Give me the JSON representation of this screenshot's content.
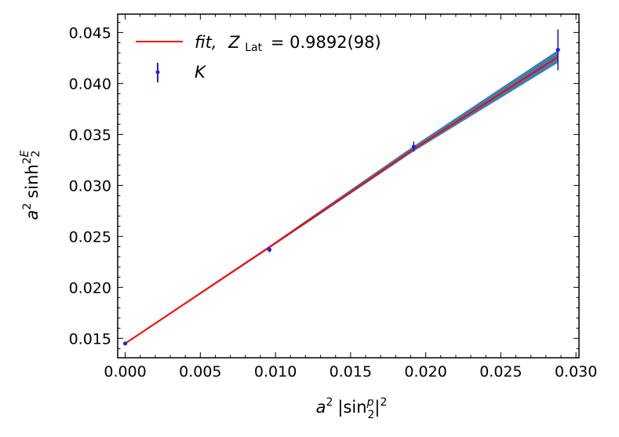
{
  "chart_data": {
    "type": "line",
    "xlabel": "a² |sin(p/2)|²",
    "ylabel": "a² sinh²(E/2)",
    "xlim": [
      -0.0005,
      0.0302
    ],
    "ylim": [
      0.0131,
      0.0468
    ],
    "x_ticks": [
      0.0,
      0.005,
      0.01,
      0.015,
      0.02,
      0.025,
      0.03
    ],
    "x_tick_labels": [
      "0.000",
      "0.005",
      "0.010",
      "0.015",
      "0.020",
      "0.025",
      "0.030"
    ],
    "y_ticks": [
      0.015,
      0.02,
      0.025,
      0.03,
      0.035,
      0.04,
      0.045
    ],
    "y_tick_labels": [
      "0.015",
      "0.020",
      "0.025",
      "0.030",
      "0.035",
      "0.040",
      "0.045"
    ],
    "legend_position": "top-left",
    "grid": false,
    "series": [
      {
        "name": "fit, Z_Lat = 0.9892(98)",
        "legend_prefix": "fit,",
        "legend_sym": "Z",
        "legend_sub": "Lat",
        "legend_value": "= 0.9892(98)",
        "kind": "line",
        "color": "#ff0000",
        "band_color": "#3a7fb0",
        "x": [
          0.0,
          0.0096,
          0.0192,
          0.0288
        ],
        "y": [
          0.0145,
          0.02395,
          0.03355,
          0.0426
        ],
        "band_lower": [
          0.0145,
          0.0239,
          0.0334,
          0.0421
        ],
        "band_upper": [
          0.0145,
          0.024,
          0.0338,
          0.0432
        ]
      },
      {
        "name": "K",
        "kind": "errorbar",
        "color": "#2222dd",
        "x": [
          0.0,
          0.0096,
          0.0192,
          0.0288
        ],
        "y": [
          0.0145,
          0.0237,
          0.0338,
          0.0433
        ],
        "yerr": [
          0.0001,
          0.00025,
          0.0005,
          0.002
        ]
      }
    ]
  }
}
